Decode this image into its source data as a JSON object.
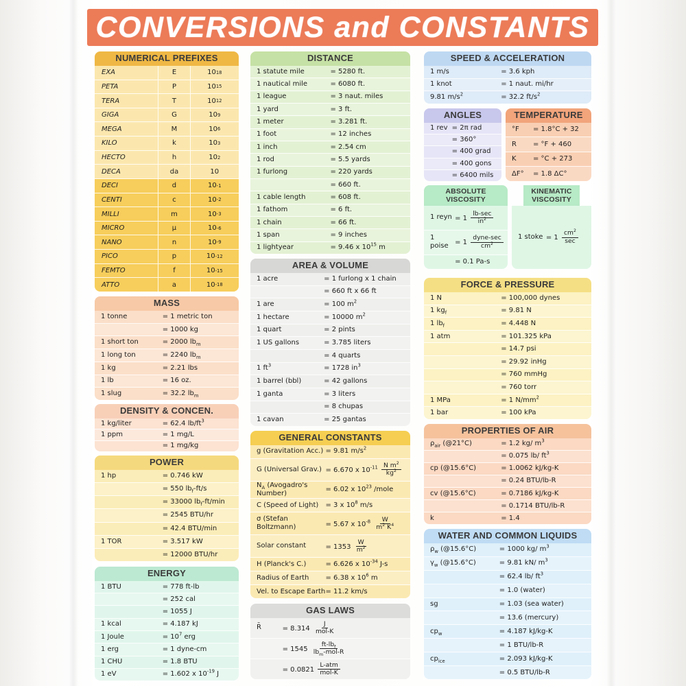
{
  "title": "CONVERSIONS and CONSTANTS",
  "palette": {
    "banner": "#EC7B58",
    "page_background": "#FDFDFC",
    "text": "#1E1E1E",
    "header_text": "#3B3B3B",
    "panels": {
      "numerical_prefixes": {
        "header": "#EFB845",
        "body": "#FBE7AE",
        "body2": "#F7CE5C"
      },
      "mass": {
        "header": "#F7C9A6",
        "body": "#FBDFC9"
      },
      "density": {
        "header": "#F8D0B8",
        "body": "#FCE3D2"
      },
      "power": {
        "header": "#F5D97E",
        "body": "#FBEDB9"
      },
      "energy": {
        "header": "#BCE9D2",
        "body": "#E0F6EC"
      },
      "distance": {
        "header": "#C6E1A5",
        "body": "#E3F1D3"
      },
      "area_volume": {
        "header": "#D7D7D5",
        "body": "#EFEFED"
      },
      "general_constants": {
        "header": "#F5CE52",
        "body": "#FBE9B2"
      },
      "gas_laws": {
        "header": "#DCDCDA",
        "body": "#F1F1EF"
      },
      "speed_acceleration": {
        "header": "#BED8F2",
        "body": "#DEEBF8"
      },
      "angles": {
        "header": "#C8C7EC",
        "body": "#E6E5F7"
      },
      "temperature": {
        "header": "#F2A47B",
        "body": "#F9CFB3"
      },
      "absolute_viscosity": {
        "header": "#B7EAC6",
        "body": "#DFF6E5"
      },
      "kinematic_viscosity": {
        "header": "#B7EAC6",
        "body": "#DFF6E5"
      },
      "force_pressure": {
        "header": "#F5DF85",
        "body": "#FCF2C3"
      },
      "properties_of_air": {
        "header": "#F5C29C",
        "body": "#FBD9C3"
      },
      "water_liquids": {
        "header": "#BFDCF4",
        "body": "#DFF0FA"
      }
    }
  },
  "panels": {
    "numerical_prefixes": {
      "title": "NUMERICAL PREFIXES",
      "rows": [
        [
          "EXA",
          "E",
          "10^18"
        ],
        [
          "PETA",
          "P",
          "10^15"
        ],
        [
          "TERA",
          "T",
          "10^12"
        ],
        [
          "GIGA",
          "G",
          "10^9"
        ],
        [
          "MEGA",
          "M",
          "10^6"
        ],
        [
          "KILO",
          "k",
          "10^3"
        ],
        [
          "HECTO",
          "h",
          "10^2"
        ],
        [
          "DECA",
          "da",
          "10"
        ],
        [
          "DECI",
          "d",
          "10^-1"
        ],
        [
          "CENTI",
          "c",
          "10^-2"
        ],
        [
          "MILLI",
          "m",
          "10^-3"
        ],
        [
          "MICRO",
          "μ",
          "10^-6"
        ],
        [
          "NANO",
          "n",
          "10^-9"
        ],
        [
          "PICO",
          "p",
          "10^-12"
        ],
        [
          "FEMTO",
          "f",
          "10^-15"
        ],
        [
          "ATTO",
          "a",
          "10^-18"
        ]
      ]
    },
    "mass": {
      "title": "MASS",
      "rows": [
        [
          "1 tonne",
          "= 1 metric ton"
        ],
        [
          "",
          "= 1000 kg"
        ],
        [
          "1 short ton",
          "= 2000 lb_m"
        ],
        [
          "1 long ton",
          "= 2240 lb_m"
        ],
        [
          "1 kg",
          "= 2.21 lbs"
        ],
        [
          "1 lb",
          "= 16 oz."
        ],
        [
          "1 slug",
          "= 32.2 lb_m"
        ]
      ]
    },
    "density": {
      "title": "DENSITY & CONCEN.",
      "rows": [
        [
          "1 kg/liter",
          "= 62.4 lb/ft^3"
        ],
        [
          "1 ppm",
          "= 1 mg/L"
        ],
        [
          "",
          "= 1 mg/kg"
        ]
      ]
    },
    "power": {
      "title": "POWER",
      "rows": [
        [
          "1 hp",
          "= 0.746 kW"
        ],
        [
          "",
          "= 550 lb_f-ft/s"
        ],
        [
          "",
          "= 33000 lb_f-ft/min"
        ],
        [
          "",
          "= 2545 BTU/hr"
        ],
        [
          "",
          "= 42.4 BTU/min"
        ],
        [
          "1 TOR",
          "= 3.517 kW"
        ],
        [
          "",
          "= 12000 BTU/hr"
        ]
      ]
    },
    "energy": {
      "title": "ENERGY",
      "rows": [
        [
          "1 BTU",
          "= 778 ft-lb"
        ],
        [
          "",
          "= 252 cal"
        ],
        [
          "",
          "= 1055 J"
        ],
        [
          "1 kcal",
          "= 4.187 kJ"
        ],
        [
          "1 Joule",
          "= 10^7 erg"
        ],
        [
          "1 erg",
          "= 1 dyne-cm"
        ],
        [
          "1 CHU",
          "= 1.8 BTU"
        ],
        [
          "1 eV",
          "= 1.602 x 10^-19 J"
        ]
      ]
    },
    "distance": {
      "title": "DISTANCE",
      "rows": [
        [
          "1 statute mile",
          "= 5280 ft."
        ],
        [
          "1 nautical mile",
          "= 6080 ft."
        ],
        [
          "1 league",
          "= 3 naut. miles"
        ],
        [
          "1 yard",
          "= 3 ft."
        ],
        [
          "1 meter",
          "= 3.281 ft."
        ],
        [
          "1 foot",
          "= 12 inches"
        ],
        [
          "1 inch",
          "= 2.54 cm"
        ],
        [
          "1 rod",
          "= 5.5 yards"
        ],
        [
          "1 furlong",
          "= 220 yards"
        ],
        [
          "",
          "= 660 ft."
        ],
        [
          "1 cable length",
          "= 608 ft."
        ],
        [
          "1 fathom",
          "= 6 ft."
        ],
        [
          "1 chain",
          "= 66 ft."
        ],
        [
          "1 span",
          "= 9 inches"
        ],
        [
          "1 lightyear",
          "= 9.46 x 10^15 m"
        ]
      ]
    },
    "area_volume": {
      "title": "AREA & VOLUME",
      "rows": [
        [
          "1 acre",
          "= 1 furlong x 1 chain"
        ],
        [
          "",
          "= 660 ft x 66 ft"
        ],
        [
          "1 are",
          "= 100 m^2"
        ],
        [
          "1 hectare",
          "= 10000 m^2"
        ],
        [
          "1 quart",
          "= 2 pints"
        ],
        [
          "1 US gallons",
          "= 3.785 liters"
        ],
        [
          "",
          "= 4 quarts"
        ],
        [
          "1 ft^3",
          "= 1728 in^3"
        ],
        [
          "1 barrel (bbl)",
          "= 42 gallons"
        ],
        [
          "1 ganta",
          "= 3 liters"
        ],
        [
          "",
          "= 8 chupas"
        ],
        [
          "1 cavan",
          "= 25 gantas"
        ]
      ]
    },
    "general_constants": {
      "title": "GENERAL CONSTANTS",
      "rows": [
        [
          "g (Gravitation Acc.)",
          "= 9.81 m/s^2"
        ],
        [
          "G (Universal Grav.)",
          "= 6.670 x 10^-11 {N m^2||kg^2}"
        ],
        [
          "N_A (Avogadro's Number)",
          "= 6.02 x 10^23 /mole"
        ],
        [
          "C (Speed of Light)",
          "= 3 x 10^8 m/s"
        ],
        [
          "σ (Stefan Boltzmann)",
          "= 5.67 x 10^-8 {W||m^2 K^4}"
        ],
        [
          "Solar constant",
          "= 1353 {W||m^2}"
        ],
        [
          "H (Planck's C.)",
          "= 6.626 x 10^-34 J-s"
        ],
        [
          "Radius of Earth",
          "= 6.38 x 10^6 m"
        ],
        [
          "Vel. to Escape Earth",
          "= 11.2 km/s"
        ]
      ]
    },
    "gas_laws": {
      "title": "GAS LAWS",
      "rows": [
        [
          "R̄",
          "= 8.314 {J||mol-K}"
        ],
        [
          "",
          "= 1545 {ft-lb_f||lb_m-mol-R}"
        ],
        [
          "",
          "= 0.0821 {L-atm||mol-K}"
        ]
      ]
    },
    "speed_acceleration": {
      "title": "SPEED & ACCELERATION",
      "rows": [
        [
          "1 m/s",
          "= 3.6 kph"
        ],
        [
          "1 knot",
          "= 1 naut. mi/hr"
        ],
        [
          "9.81 m/s^2",
          "= 32.2 ft/s^2"
        ]
      ]
    },
    "angles": {
      "title": "ANGLES",
      "rows": [
        [
          "1 rev",
          "= 2π rad"
        ],
        [
          "",
          "= 360°"
        ],
        [
          "",
          "= 400 grad"
        ],
        [
          "",
          "= 400 gons"
        ],
        [
          "",
          "= 6400 mils"
        ]
      ]
    },
    "temperature": {
      "title": "TEMPERATURE",
      "rows": [
        [
          "°F",
          "= 1.8°C + 32"
        ],
        [
          "R",
          "= °F + 460"
        ],
        [
          "K",
          "= °C + 273"
        ],
        [
          "ΔF°",
          "= 1.8 ΔC°"
        ]
      ]
    },
    "absolute_viscosity": {
      "title": "ABSOLUTE VISCOSITY",
      "rows": [
        [
          "1 reyn",
          "= 1 {lb-sec||in^2}"
        ],
        [
          "1 poise",
          "= 1 {dyne-sec||cm^2}"
        ],
        [
          "",
          "= 0.1 Pa-s"
        ]
      ]
    },
    "kinematic_viscosity": {
      "title": "KINEMATIC VISCOSITY",
      "rows": [
        [
          "1 stoke",
          "= 1 {cm^2||sec}"
        ]
      ]
    },
    "force_pressure": {
      "title": "FORCE & PRESSURE",
      "rows": [
        [
          "1 N",
          "= 100,000 dynes"
        ],
        [
          "1 kg_f",
          "= 9.81 N"
        ],
        [
          "1 lb_f",
          "= 4.448 N"
        ],
        [
          "1 atm",
          "= 101.325 kPa"
        ],
        [
          "",
          "= 14.7 psi"
        ],
        [
          "",
          "= 29.92 inHg"
        ],
        [
          "",
          "= 760 mmHg"
        ],
        [
          "",
          "= 760 torr"
        ],
        [
          "1 MPa",
          "= 1 N/mm^2"
        ],
        [
          "1 bar",
          "= 100 kPa"
        ]
      ]
    },
    "properties_of_air": {
      "title": "PROPERTIES OF AIR",
      "rows": [
        [
          "ρ_air (@21°C)",
          "= 1.2 kg/ m^3"
        ],
        [
          "",
          "= 0.075 lb/ ft^3"
        ],
        [
          "cp (@15.6°C)",
          "= 1.0062 kJ/kg-K"
        ],
        [
          "",
          "= 0.24 BTU/lb-R"
        ],
        [
          "cv (@15.6°C)",
          "= 0.7186 kJ/kg-K"
        ],
        [
          "",
          "= 0.1714 BTU/lb-R"
        ],
        [
          "k",
          "= 1.4"
        ]
      ]
    },
    "water_liquids": {
      "title": "WATER AND COMMON LIQUIDS",
      "rows": [
        [
          "ρ_w (@15.6°C)",
          "= 1000 kg/ m^3"
        ],
        [
          "γ_w (@15.6°C)",
          "= 9.81 kN/ m^3"
        ],
        [
          "",
          "= 62.4 lb/ ft^3"
        ],
        [
          "",
          "= 1.0 (water)"
        ],
        [
          "sg",
          "= 1.03 (sea water)"
        ],
        [
          "",
          "= 13.6 (mercury)"
        ],
        [
          "cp_w",
          "= 4.187 kJ/kg-K"
        ],
        [
          "",
          "= 1 BTU/lb-R"
        ],
        [
          "cp_ice",
          "= 2.093 kJ/kg-K"
        ],
        [
          "",
          "= 0.5 BTU/lb-R"
        ]
      ]
    }
  }
}
